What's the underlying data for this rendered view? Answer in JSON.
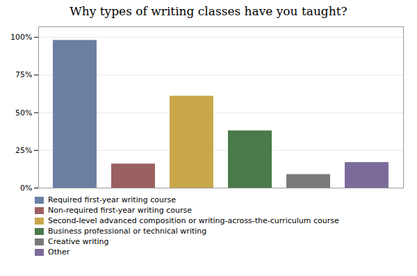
{
  "chart_data": {
    "type": "bar",
    "title": "Why types of writing classes have you taught?",
    "categories": [
      "Required first-year writing course",
      "Non-required first-year writing course",
      "Second-level advanced composition or writing-across-the-curriculum course",
      "Business professional or technical writing",
      "Creative writing",
      "Other"
    ],
    "values": [
      98,
      16,
      61,
      38,
      9,
      17
    ],
    "colors": [
      "#6b7fa3",
      "#9b6060",
      "#c8a84b",
      "#4a7a4a",
      "#7a7a7a",
      "#7b6b9a"
    ],
    "ylim": [
      0,
      107
    ],
    "yticks": [
      {
        "value": 0,
        "label": "0%"
      },
      {
        "value": 25,
        "label": "25%"
      },
      {
        "value": 50,
        "label": "50%"
      },
      {
        "value": 75,
        "label": "75%"
      },
      {
        "value": 100,
        "label": "100%"
      }
    ],
    "grid": true,
    "legend": "bottom",
    "tick_labels": "y"
  }
}
